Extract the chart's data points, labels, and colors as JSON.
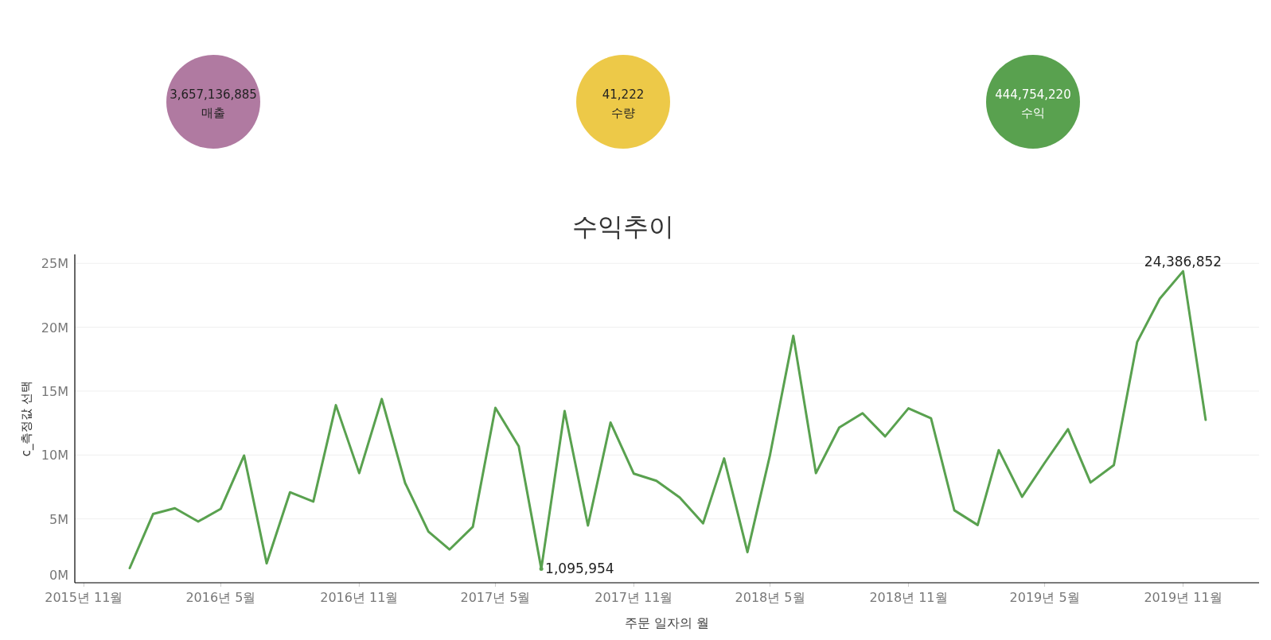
{
  "chart_data": [
    {
      "type": "other",
      "categories": [
        "매출",
        "수량",
        "수익"
      ],
      "annotations": [
        "3,657,136,885",
        "41,222",
        "444,754,220"
      ],
      "colors": [
        "#b07aa1",
        "#edc948",
        "#59a14f"
      ]
    },
    {
      "type": "line",
      "title": "수익추이",
      "xlabel": "주문 일자의 월",
      "ylabel": "c_측정값 선택",
      "x": [
        "2016-01",
        "2016-02",
        "2016-03",
        "2016-04",
        "2016-05",
        "2016-06",
        "2016-07",
        "2016-08",
        "2016-09",
        "2016-10",
        "2016-11",
        "2016-12",
        "2017-01",
        "2017-02",
        "2017-03",
        "2017-04",
        "2017-05",
        "2017-06",
        "2017-07",
        "2017-08",
        "2017-09",
        "2017-10",
        "2017-11",
        "2017-12",
        "2018-01",
        "2018-02",
        "2018-03",
        "2018-04",
        "2018-05",
        "2018-06",
        "2018-07",
        "2018-08",
        "2018-09",
        "2018-10",
        "2018-11",
        "2018-12",
        "2019-01",
        "2019-02",
        "2019-03",
        "2019-04",
        "2019-05",
        "2019-06",
        "2019-07",
        "2019-08",
        "2019-09",
        "2019-10",
        "2019-11",
        "2019-12"
      ],
      "series": [
        {
          "color": "#59a14f",
          "values": [
            1150000,
            5380000,
            5830000,
            4790000,
            5790000,
            9960000,
            1520000,
            7080000,
            6350000,
            13900000,
            8580000,
            14380000,
            7810000,
            4000000,
            2600000,
            4380000,
            13690000,
            10690000,
            1095954,
            13440000,
            4480000,
            12540000,
            8540000,
            7980000,
            6670000,
            4650000,
            9730000,
            2400000,
            10000000,
            19330000,
            8580000,
            12150000,
            13270000,
            11460000,
            13650000,
            12880000,
            5670000,
            4520000,
            10380000,
            6730000,
            9380000,
            12020000,
            7850000,
            9210000,
            18850000,
            22230000,
            24386852,
            12750000
          ],
          "value_labels": [
            null,
            null,
            null,
            null,
            null,
            null,
            null,
            null,
            null,
            null,
            null,
            null,
            null,
            null,
            null,
            null,
            null,
            null,
            "1,095,954",
            null,
            null,
            null,
            null,
            null,
            null,
            null,
            null,
            null,
            null,
            null,
            null,
            null,
            null,
            null,
            null,
            null,
            null,
            null,
            null,
            null,
            null,
            null,
            null,
            null,
            null,
            null,
            "24,386,852",
            null
          ]
        }
      ],
      "xlim": [
        "2015-10-20",
        "2020-02-10"
      ],
      "xticks": [
        {
          "value": "2015-11",
          "label": "2015년 11월"
        },
        {
          "value": "2016-05",
          "label": "2016년 5월"
        },
        {
          "value": "2016-11",
          "label": "2016년 11월"
        },
        {
          "value": "2017-05",
          "label": "2017년 5월"
        },
        {
          "value": "2017-11",
          "label": "2017년 11월"
        },
        {
          "value": "2018-05",
          "label": "2018년 5월"
        },
        {
          "value": "2018-11",
          "label": "2018년 11월"
        },
        {
          "value": "2019-05",
          "label": "2019년 5월"
        },
        {
          "value": "2019-11",
          "label": "2019년 11월"
        }
      ],
      "ylim": [
        0,
        25700000
      ],
      "yticks": [
        {
          "value": 0,
          "label": "0M"
        },
        {
          "value": 5000000,
          "label": "5M"
        },
        {
          "value": 10000000,
          "label": "10M"
        },
        {
          "value": 15000000,
          "label": "15M"
        },
        {
          "value": 20000000,
          "label": "20M"
        },
        {
          "value": 25000000,
          "label": "25M"
        }
      ],
      "grid": "y"
    }
  ]
}
